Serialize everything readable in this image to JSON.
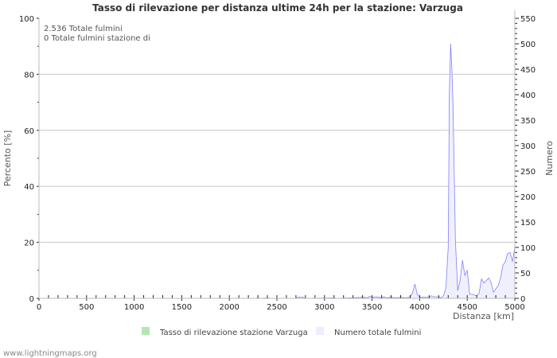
{
  "chart_data": {
    "type": "area",
    "title": "Tasso di rilevazione per distanza ultime 24h per la stazione: Varzuga",
    "xlabel": "Distanza   [km]",
    "ylabel_left": "Percento   [%]",
    "ylabel_right": "Numero",
    "xlim": [
      0,
      5000
    ],
    "ylim_left": [
      0,
      100
    ],
    "ylim_right": [
      0,
      550
    ],
    "x_ticks": [
      "0",
      "500",
      "1000",
      "1500",
      "2000",
      "2500",
      "3000",
      "3500",
      "4000",
      "4500",
      "5000"
    ],
    "y_left_ticks": [
      "0",
      "20",
      "40",
      "60",
      "80",
      "100"
    ],
    "y_right_ticks": [
      "0",
      "50",
      "100",
      "150",
      "200",
      "250",
      "300",
      "350",
      "400",
      "450",
      "500",
      "550"
    ],
    "grid": true,
    "annotations": [
      "2.536 Totale fulmini",
      "0 Totale fulmini stazione di"
    ],
    "legend_position": "bottom",
    "series": [
      {
        "name": "Tasso di rilevazione stazione Varzuga",
        "axis": "left",
        "color": "#b3e6b3",
        "x": [],
        "values": []
      },
      {
        "name": "Numero totale fulmini",
        "axis": "right",
        "color": "#8080ff",
        "fill": "#f0f0fc",
        "x": [
          0,
          2275,
          2300,
          2325,
          2400,
          2425,
          2700,
          2725,
          2775,
          2800,
          3100,
          3125,
          3250,
          3300,
          3400,
          3450,
          3475,
          3500,
          3550,
          3600,
          3625,
          3650,
          3700,
          3750,
          3800,
          3850,
          3900,
          3925,
          3950,
          3975,
          4000,
          4050,
          4100,
          4125,
          4150,
          4200,
          4225,
          4250,
          4275,
          4300,
          4312,
          4325,
          4337,
          4350,
          4375,
          4400,
          4425,
          4450,
          4475,
          4500,
          4525,
          4550,
          4600,
          4625,
          4650,
          4675,
          4725,
          4750,
          4775,
          4825,
          4850,
          4875,
          4900,
          4925,
          4950,
          4975,
          5000
        ],
        "values": [
          0,
          0,
          1,
          0,
          1,
          0,
          0,
          2,
          2,
          0,
          1,
          0,
          1,
          1,
          2,
          1,
          4,
          2,
          3,
          1,
          3,
          1,
          2,
          1,
          2,
          1,
          2,
          10,
          28,
          8,
          2,
          2,
          2,
          5,
          3,
          3,
          1,
          5,
          20,
          100,
          400,
          500,
          460,
          380,
          115,
          15,
          35,
          75,
          45,
          55,
          8,
          8,
          5,
          10,
          38,
          30,
          40,
          32,
          12,
          25,
          40,
          65,
          72,
          88,
          90,
          72,
          100
        ]
      }
    ]
  },
  "footer": "www.lightningmaps.org"
}
